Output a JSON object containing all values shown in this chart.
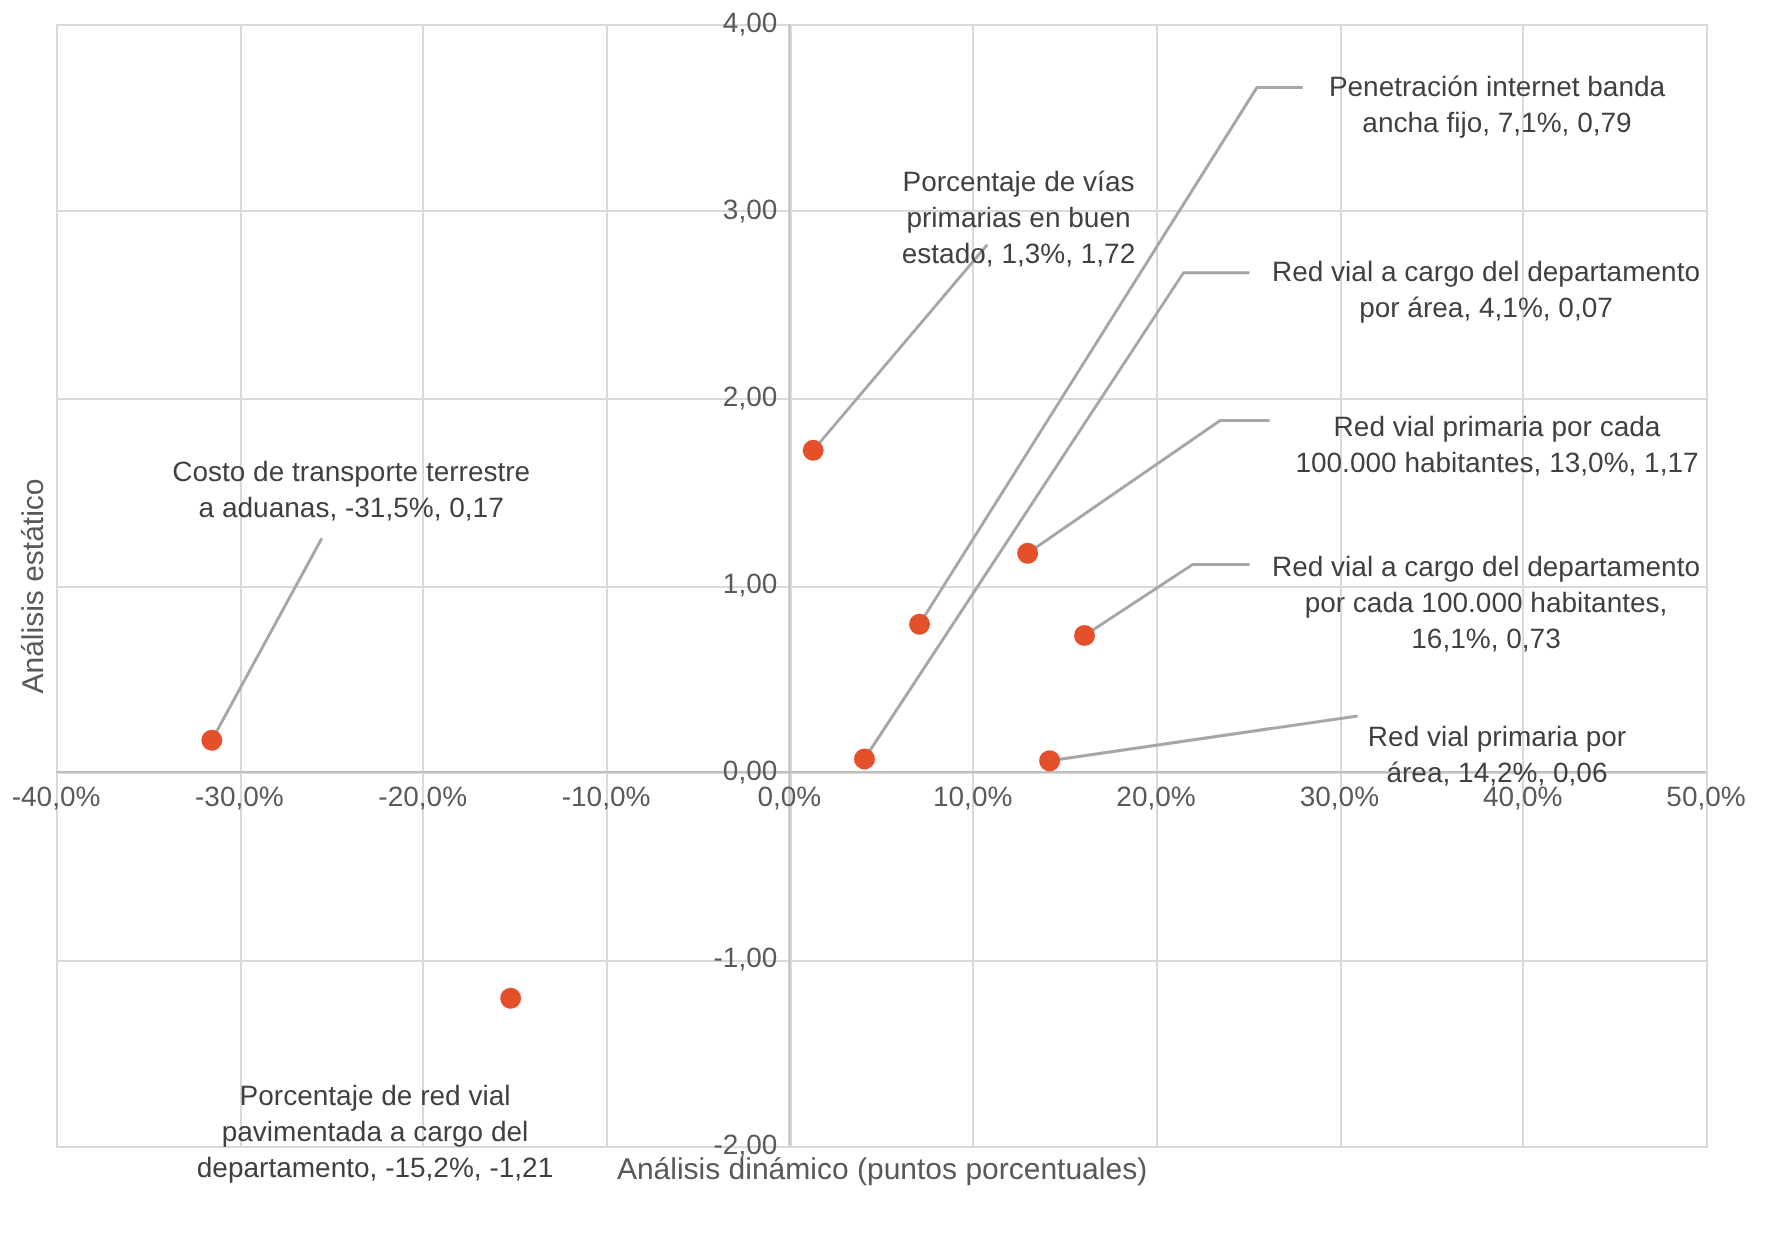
{
  "chart_data": {
    "type": "scatter",
    "xlabel": "Análisis dinámico (puntos porcentuales)",
    "ylabel": "Análisis estático",
    "series": [
      {
        "color": "#e4502a",
        "x": [
          7.1,
          4.1,
          1.3,
          13.0,
          16.1,
          14.2,
          -31.5,
          -15.2
        ],
        "values": [
          0.79,
          0.07,
          1.72,
          1.17,
          0.73,
          0.06,
          0.17,
          -1.21
        ]
      }
    ],
    "annotations": [
      {
        "text": "Penetración internet banda ancha fijo, 7,1%, 0,79",
        "x": 7.1,
        "y": 0.79
      },
      {
        "text": "Red vial a cargo del departamento por área, 4,1%, 0,07",
        "x": 4.1,
        "y": 0.07
      },
      {
        "text": "Porcentaje de vías primarias en buen estado, 1,3%, 1,72",
        "x": 1.3,
        "y": 1.72
      },
      {
        "text": "Red vial primaria por cada 100.000 habitantes, 13,0%, 1,17",
        "x": 13.0,
        "y": 1.17
      },
      {
        "text": "Red vial a cargo del departamento por cada 100.000 habitantes, 16,1%, 0,73",
        "x": 16.1,
        "y": 0.73
      },
      {
        "text": "Red vial primaria por área, 14,2%, 0,06",
        "x": 14.2,
        "y": 0.06
      },
      {
        "text": "Costo de transporte terrestre a aduanas, -31,5%, 0,17",
        "x": -31.5,
        "y": 0.17
      },
      {
        "text": "Porcentaje de red vial pavimentada a cargo del departamento, -15,2%, -1,21",
        "x": -15.2,
        "y": -1.21
      }
    ],
    "xlim": [
      -40,
      50
    ],
    "xticks": [
      {
        "value": -40,
        "label": "-40,0%"
      },
      {
        "value": -30,
        "label": "-30,0%"
      },
      {
        "value": -20,
        "label": "-20,0%"
      },
      {
        "value": -10,
        "label": "-10,0%"
      },
      {
        "value": 0,
        "label": "0,0%"
      },
      {
        "value": 10,
        "label": "10,0%"
      },
      {
        "value": 20,
        "label": "20,0%"
      },
      {
        "value": 30,
        "label": "30,0%"
      },
      {
        "value": 40,
        "label": "40,0%"
      },
      {
        "value": 50,
        "label": "50,0%"
      }
    ],
    "ylim": [
      -2,
      4
    ],
    "yticks": [
      {
        "value": -2,
        "label": "-2,00"
      },
      {
        "value": -1,
        "label": "-1,00"
      },
      {
        "value": 0,
        "label": "0,00"
      },
      {
        "value": 1,
        "label": "1,00"
      },
      {
        "value": 2,
        "label": "2,00"
      },
      {
        "value": 3,
        "label": "3,00"
      },
      {
        "value": 4,
        "label": "4,00"
      }
    ],
    "grid": true,
    "marker": "circle"
  }
}
